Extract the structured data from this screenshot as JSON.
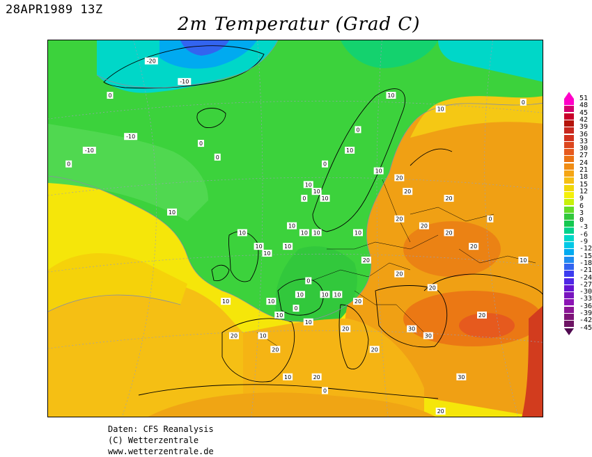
{
  "header": {
    "date": "28APR1989 13Z",
    "title": "2m Temperatur (Grad C)"
  },
  "legend": {
    "levels": [
      "51",
      "48",
      "45",
      "42",
      "39",
      "36",
      "33",
      "30",
      "27",
      "24",
      "21",
      "18",
      "15",
      "12",
      "9",
      "6",
      "3",
      "0",
      "-3",
      "-6",
      "-9",
      "-12",
      "-15",
      "-18",
      "-21",
      "-24",
      "-27",
      "-30",
      "-33",
      "-36",
      "-39",
      "-42",
      "-45"
    ],
    "colors": [
      "#ff00c8",
      "#d4006e",
      "#c8002a",
      "#b4140a",
      "#c8281e",
      "#d2321e",
      "#dc461e",
      "#e65a1e",
      "#eb7314",
      "#f08c14",
      "#f5a514",
      "#f5bf14",
      "#f0d70a",
      "#f5f00a",
      "#c8f00a",
      "#64dc28",
      "#32c83c",
      "#14c850",
      "#00d28c",
      "#00d7c8",
      "#00c8e6",
      "#00aaf0",
      "#1e8cf0",
      "#3264f0",
      "#3c3cf0",
      "#5028e6",
      "#6414d2",
      "#7814be",
      "#8c14b4",
      "#8c1496",
      "#7d1478",
      "#6e1464"
    ],
    "top_color": "#ff00c8",
    "bottom_color": "#500a50"
  },
  "map": {
    "labels": [
      {
        "text": "0",
        "lon": -40,
        "lat": 72
      },
      {
        "text": "-10",
        "lon": -22,
        "lat": 74
      },
      {
        "text": "-20",
        "lon": -30,
        "lat": 77
      },
      {
        "text": "-10",
        "lon": -35,
        "lat": 66
      },
      {
        "text": "-10",
        "lon": -45,
        "lat": 64
      },
      {
        "text": "0",
        "lon": -50,
        "lat": 62
      },
      {
        "text": "0",
        "lon": -18,
        "lat": 65
      },
      {
        "text": "0",
        "lon": -14,
        "lat": 63
      },
      {
        "text": "10",
        "lon": 28,
        "lat": 72
      },
      {
        "text": "10",
        "lon": 40,
        "lat": 70
      },
      {
        "text": "0",
        "lon": 60,
        "lat": 71
      },
      {
        "text": "0",
        "lon": 20,
        "lat": 67
      },
      {
        "text": "10",
        "lon": 18,
        "lat": 64
      },
      {
        "text": "0",
        "lon": 12,
        "lat": 62
      },
      {
        "text": "10",
        "lon": 25,
        "lat": 61
      },
      {
        "text": "20",
        "lon": 30,
        "lat": 60
      },
      {
        "text": "20",
        "lon": 32,
        "lat": 58
      },
      {
        "text": "20",
        "lon": 42,
        "lat": 57
      },
      {
        "text": "10",
        "lon": 8,
        "lat": 59
      },
      {
        "text": "10",
        "lon": 10,
        "lat": 58
      },
      {
        "text": "10",
        "lon": 12,
        "lat": 57
      },
      {
        "text": "0",
        "lon": 7,
        "lat": 57
      },
      {
        "text": "10",
        "lon": 4,
        "lat": 53
      },
      {
        "text": "10",
        "lon": 7,
        "lat": 52
      },
      {
        "text": "10",
        "lon": 10,
        "lat": 52
      },
      {
        "text": "10",
        "lon": 3,
        "lat": 50
      },
      {
        "text": "10",
        "lon": -25,
        "lat": 55
      },
      {
        "text": "10",
        "lon": -8,
        "lat": 52
      },
      {
        "text": "10",
        "lon": -4,
        "lat": 50
      },
      {
        "text": "10",
        "lon": -2,
        "lat": 49
      },
      {
        "text": "10",
        "lon": 20,
        "lat": 52
      },
      {
        "text": "20",
        "lon": 30,
        "lat": 54
      },
      {
        "text": "20",
        "lon": 36,
        "lat": 53
      },
      {
        "text": "20",
        "lon": 42,
        "lat": 52
      },
      {
        "text": "0",
        "lon": 52,
        "lat": 54
      },
      {
        "text": "20",
        "lon": 48,
        "lat": 50
      },
      {
        "text": "10",
        "lon": 60,
        "lat": 48
      },
      {
        "text": "20",
        "lon": 22,
        "lat": 48
      },
      {
        "text": "20",
        "lon": 30,
        "lat": 46
      },
      {
        "text": "20",
        "lon": 38,
        "lat": 44
      },
      {
        "text": "20",
        "lon": 50,
        "lat": 40
      },
      {
        "text": "30",
        "lon": 33,
        "lat": 38
      },
      {
        "text": "30",
        "lon": 37,
        "lat": 37
      },
      {
        "text": "30",
        "lon": 45,
        "lat": 31
      },
      {
        "text": "20",
        "lon": 20,
        "lat": 42
      },
      {
        "text": "10",
        "lon": 12,
        "lat": 43
      },
      {
        "text": "10",
        "lon": 15,
        "lat": 43
      },
      {
        "text": "10",
        "lon": 6,
        "lat": 43
      },
      {
        "text": "0",
        "lon": 8,
        "lat": 45
      },
      {
        "text": "10",
        "lon": -1,
        "lat": 42
      },
      {
        "text": "10",
        "lon": -12,
        "lat": 42
      },
      {
        "text": "0",
        "lon": 5,
        "lat": 41
      },
      {
        "text": "10",
        "lon": 1,
        "lat": 40
      },
      {
        "text": "10",
        "lon": 8,
        "lat": 39
      },
      {
        "text": "20",
        "lon": 17,
        "lat": 38
      },
      {
        "text": "20",
        "lon": 24,
        "lat": 35
      },
      {
        "text": "20",
        "lon": -10,
        "lat": 37
      },
      {
        "text": "10",
        "lon": -3,
        "lat": 37
      },
      {
        "text": "20",
        "lon": 0,
        "lat": 35
      },
      {
        "text": "10",
        "lon": 3,
        "lat": 31
      },
      {
        "text": "20",
        "lon": 10,
        "lat": 31
      },
      {
        "text": "0",
        "lon": 12,
        "lat": 29
      },
      {
        "text": "20",
        "lon": 40,
        "lat": 26
      }
    ]
  },
  "credits": {
    "line1": "Daten: CFS Reanalysis",
    "line2": "(C) Wetterzentrale",
    "line3": "www.wetterzentrale.de"
  }
}
